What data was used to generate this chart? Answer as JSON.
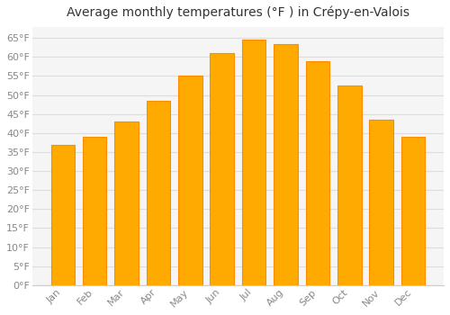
{
  "title": "Average monthly temperatures (°F ) in Crépy-en-Valois",
  "months": [
    "Jan",
    "Feb",
    "Mar",
    "Apr",
    "May",
    "Jun",
    "Jul",
    "Aug",
    "Sep",
    "Oct",
    "Nov",
    "Dec"
  ],
  "values": [
    37,
    39,
    43,
    48.5,
    55,
    61,
    64.5,
    63.5,
    59,
    52.5,
    43.5,
    39
  ],
  "bar_color_face": "#FFAA00",
  "bar_color_edge": "#FF8C00",
  "background_color": "#FFFFFF",
  "plot_bg_color": "#F5F5F5",
  "grid_color": "#DDDDDD",
  "tick_label_color": "#888888",
  "title_color": "#333333",
  "yticks": [
    0,
    5,
    10,
    15,
    20,
    25,
    30,
    35,
    40,
    45,
    50,
    55,
    60,
    65
  ],
  "ylim": [
    0,
    68
  ],
  "ylabel_suffix": "°F",
  "title_fontsize": 10,
  "tick_fontsize": 8
}
